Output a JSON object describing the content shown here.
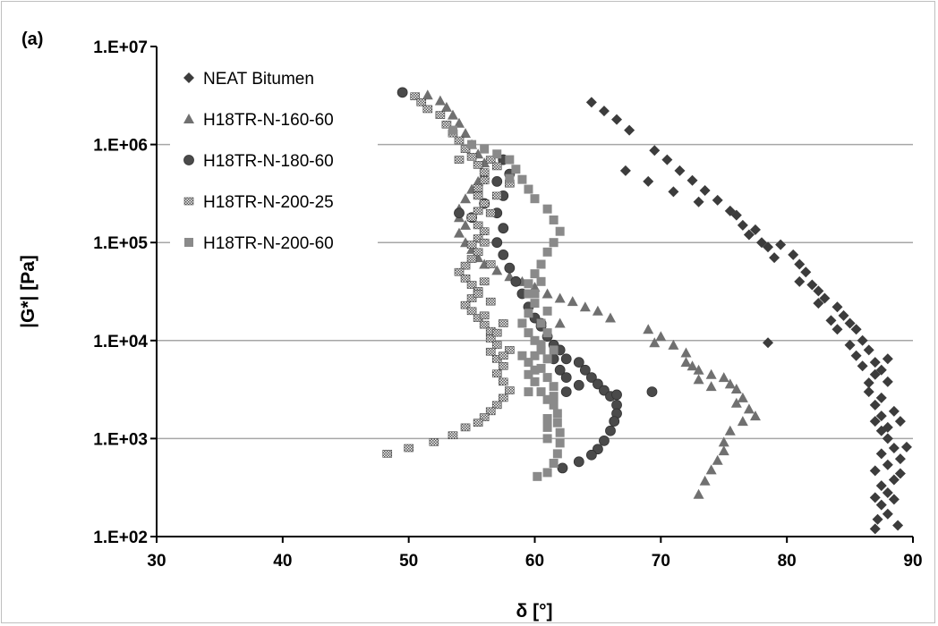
{
  "chart_data": {
    "type": "scatter",
    "panel_label": "(a)",
    "xlabel": "δ [°]",
    "ylabel": "|G*| [Pa]",
    "xlim": [
      30,
      90
    ],
    "ylim": [
      100,
      10000000
    ],
    "y_scale": "log",
    "x_ticks": [
      30,
      40,
      50,
      60,
      70,
      80,
      90
    ],
    "y_ticks": [
      100,
      1000,
      10000,
      100000,
      1000000,
      10000000
    ],
    "y_tick_labels": [
      "1.E+02",
      "1.E+03",
      "1.E+04",
      "1.E+05",
      "1.E+06",
      "1.E+07"
    ],
    "grid": "horizontal",
    "legend_position": "top-left",
    "series": [
      {
        "name": "NEAT Bitumen",
        "marker": "diamond",
        "color": "#3c3c3c",
        "points": [
          [
            64.5,
            2700000
          ],
          [
            65.5,
            2200000
          ],
          [
            66.5,
            1800000
          ],
          [
            67.5,
            1400000
          ],
          [
            67.2,
            540000
          ],
          [
            69.5,
            870000
          ],
          [
            69,
            420000
          ],
          [
            70.5,
            700000
          ],
          [
            71.5,
            540000
          ],
          [
            71,
            330000
          ],
          [
            72.5,
            430000
          ],
          [
            73.5,
            340000
          ],
          [
            73,
            260000
          ],
          [
            74.5,
            270000
          ],
          [
            75.5,
            210000
          ],
          [
            76,
            190000
          ],
          [
            76.5,
            150000
          ],
          [
            77.5,
            135000
          ],
          [
            77,
            120000
          ],
          [
            78,
            100000
          ],
          [
            78.5,
            90000
          ],
          [
            79.5,
            95000
          ],
          [
            79,
            70000
          ],
          [
            80.5,
            75000
          ],
          [
            81,
            60000
          ],
          [
            81.5,
            50000
          ],
          [
            81,
            40000
          ],
          [
            82,
            37000
          ],
          [
            82.5,
            32000
          ],
          [
            83,
            27000
          ],
          [
            82.5,
            24000
          ],
          [
            84,
            22000
          ],
          [
            84.5,
            18000
          ],
          [
            83.5,
            16000
          ],
          [
            85,
            15000
          ],
          [
            85.5,
            13000
          ],
          [
            84,
            13000
          ],
          [
            86,
            10000
          ],
          [
            85,
            9000
          ],
          [
            86.5,
            8000
          ],
          [
            85.5,
            7000
          ],
          [
            87,
            6000
          ],
          [
            86,
            5500
          ],
          [
            87,
            4500
          ],
          [
            86.5,
            3700
          ],
          [
            86.5,
            3000
          ],
          [
            88,
            6500
          ],
          [
            87.5,
            5000
          ],
          [
            88,
            3800
          ],
          [
            87.5,
            2600
          ],
          [
            87,
            2200
          ],
          [
            88.5,
            1900
          ],
          [
            87.5,
            1700
          ],
          [
            87,
            1500
          ],
          [
            89,
            1500
          ],
          [
            88,
            1300
          ],
          [
            87.5,
            1200
          ],
          [
            88,
            1000
          ],
          [
            89.5,
            820
          ],
          [
            88.5,
            800
          ],
          [
            87.5,
            700
          ],
          [
            89,
            620
          ],
          [
            88,
            540
          ],
          [
            87,
            470
          ],
          [
            89,
            440
          ],
          [
            88.5,
            380
          ],
          [
            87.5,
            330
          ],
          [
            88,
            280
          ],
          [
            87,
            250
          ],
          [
            88.5,
            240
          ],
          [
            87.5,
            210
          ],
          [
            88,
            170
          ],
          [
            87.2,
            150
          ],
          [
            87,
            120
          ],
          [
            88.8,
            130
          ],
          [
            78.5,
            9500
          ]
        ]
      },
      {
        "name": "H18TR-N-160-60",
        "marker": "triangle",
        "color": "#707070",
        "points": [
          [
            51.5,
            3200000
          ],
          [
            52.5,
            2800000
          ],
          [
            53,
            2400000
          ],
          [
            53.5,
            2000000
          ],
          [
            54,
            1650000
          ],
          [
            54.5,
            1300000
          ],
          [
            55,
            1000000
          ],
          [
            55.5,
            800000
          ],
          [
            56,
            650000
          ],
          [
            56,
            500000
          ],
          [
            55.5,
            420000
          ],
          [
            55,
            350000
          ],
          [
            54.5,
            280000
          ],
          [
            54,
            220000
          ],
          [
            54,
            180000
          ],
          [
            54.5,
            150000
          ],
          [
            54,
            125000
          ],
          [
            54.5,
            100000
          ],
          [
            55,
            85000
          ],
          [
            55.5,
            70000
          ],
          [
            56,
            60000
          ],
          [
            57,
            52000
          ],
          [
            58,
            45000
          ],
          [
            59,
            40000
          ],
          [
            60,
            35000
          ],
          [
            61,
            30000
          ],
          [
            62,
            27000
          ],
          [
            63,
            25000
          ],
          [
            64,
            22000
          ],
          [
            65,
            20000
          ],
          [
            66,
            17000
          ],
          [
            62,
            15000
          ],
          [
            69,
            13000
          ],
          [
            70,
            11000
          ],
          [
            69.5,
            9500
          ],
          [
            71,
            9000
          ],
          [
            72,
            7500
          ],
          [
            72.5,
            5500
          ],
          [
            73,
            5000
          ],
          [
            74,
            4500
          ],
          [
            75,
            4200
          ],
          [
            76,
            3200
          ],
          [
            76.5,
            2600
          ],
          [
            77,
            2000
          ],
          [
            77.5,
            1700
          ],
          [
            76.5,
            1500
          ],
          [
            75.5,
            1200
          ],
          [
            75,
            920
          ],
          [
            75,
            750
          ],
          [
            74.5,
            600
          ],
          [
            74,
            480
          ],
          [
            73.5,
            370
          ],
          [
            73,
            270
          ],
          [
            72,
            6000
          ],
          [
            73,
            4000
          ],
          [
            74,
            3400
          ],
          [
            75.5,
            3600
          ],
          [
            76,
            2300
          ]
        ]
      },
      {
        "name": "H18TR-N-180-60",
        "marker": "circle",
        "color": "#4a4a4a",
        "points": [
          [
            49.5,
            3400000
          ],
          [
            54,
            200000
          ],
          [
            55,
            180000
          ],
          [
            56,
            250000
          ],
          [
            57,
            420000
          ],
          [
            57.5,
            700000
          ],
          [
            58,
            500000
          ],
          [
            57.5,
            300000
          ],
          [
            57,
            200000
          ],
          [
            57.5,
            140000
          ],
          [
            57,
            100000
          ],
          [
            57.5,
            75000
          ],
          [
            58,
            55000
          ],
          [
            58.5,
            40000
          ],
          [
            59,
            30000
          ],
          [
            59.5,
            22000
          ],
          [
            60,
            17000
          ],
          [
            60.5,
            14000
          ],
          [
            61,
            11000
          ],
          [
            61.5,
            9000
          ],
          [
            62,
            8000
          ],
          [
            62.5,
            6500
          ],
          [
            62,
            5000
          ],
          [
            62.5,
            4200
          ],
          [
            63.5,
            6000
          ],
          [
            64,
            5000
          ],
          [
            64.5,
            4200
          ],
          [
            65,
            3600
          ],
          [
            65.5,
            3100
          ],
          [
            66,
            2700
          ],
          [
            66.5,
            2200
          ],
          [
            66.5,
            1800
          ],
          [
            66.3,
            1500
          ],
          [
            66,
            1200
          ],
          [
            65.5,
            950
          ],
          [
            65,
            780
          ],
          [
            64.5,
            680
          ],
          [
            63.5,
            580
          ],
          [
            62.2,
            500
          ],
          [
            69.3,
            3000
          ],
          [
            66.5,
            2800
          ],
          [
            62.5,
            3000
          ],
          [
            63.5,
            3500
          ],
          [
            60.5,
            15000
          ],
          [
            61.5,
            6500
          ]
        ]
      },
      {
        "name": "H18TR-N-200-25",
        "marker": "square-hatched",
        "color": "#5a5a5a",
        "points": [
          [
            50.5,
            3100000
          ],
          [
            51,
            2700000
          ],
          [
            51.5,
            2300000
          ],
          [
            52.5,
            2000000
          ],
          [
            53,
            1600000
          ],
          [
            53.5,
            1300000
          ],
          [
            54,
            1100000
          ],
          [
            54.5,
            900000
          ],
          [
            55,
            750000
          ],
          [
            55.5,
            620000
          ],
          [
            56,
            520000
          ],
          [
            56,
            430000
          ],
          [
            55.5,
            360000
          ],
          [
            55.5,
            300000
          ],
          [
            56,
            250000
          ],
          [
            55.5,
            210000
          ],
          [
            55,
            180000
          ],
          [
            55.5,
            150000
          ],
          [
            56,
            130000
          ],
          [
            55.5,
            110000
          ],
          [
            55,
            95000
          ],
          [
            55.5,
            80000
          ],
          [
            55,
            68000
          ],
          [
            54.5,
            58000
          ],
          [
            54,
            50000
          ],
          [
            54.5,
            43000
          ],
          [
            55,
            37000
          ],
          [
            55.5,
            32000
          ],
          [
            55,
            27000
          ],
          [
            54.5,
            23000
          ],
          [
            55,
            20000
          ],
          [
            55.5,
            17000
          ],
          [
            56,
            14500
          ],
          [
            56.5,
            12500
          ],
          [
            56.5,
            10500
          ],
          [
            57,
            9000
          ],
          [
            56.5,
            7700
          ],
          [
            57,
            6500
          ],
          [
            57.5,
            5500
          ],
          [
            57,
            4600
          ],
          [
            57.5,
            3800
          ],
          [
            58,
            3100
          ],
          [
            57.5,
            2600
          ],
          [
            57,
            2200
          ],
          [
            56.5,
            1900
          ],
          [
            56,
            1650
          ],
          [
            55.5,
            1450
          ],
          [
            54.5,
            1300
          ],
          [
            53.5,
            1080
          ],
          [
            52,
            920
          ],
          [
            50,
            800
          ],
          [
            48.3,
            700
          ],
          [
            54,
            700000
          ],
          [
            56.5,
            700000
          ],
          [
            57,
            600000
          ],
          [
            58,
            400000
          ],
          [
            57,
            300000
          ],
          [
            56.5,
            200000
          ],
          [
            56,
            100000
          ],
          [
            56.5,
            60000
          ],
          [
            56,
            40000
          ],
          [
            55.5,
            30000
          ],
          [
            56.5,
            25000
          ],
          [
            56,
            18000
          ],
          [
            57.5,
            15000
          ],
          [
            57,
            12000
          ],
          [
            58,
            8000
          ],
          [
            57.5,
            7000
          ]
        ]
      },
      {
        "name": "H18TR-N-200-60",
        "marker": "square",
        "color": "#8a8a8a",
        "points": [
          [
            53.5,
            1400000
          ],
          [
            55,
            1000000
          ],
          [
            56,
            900000
          ],
          [
            57,
            800000
          ],
          [
            58,
            700000
          ],
          [
            58.5,
            560000
          ],
          [
            58,
            450000
          ],
          [
            59,
            440000
          ],
          [
            59.5,
            350000
          ],
          [
            60,
            280000
          ],
          [
            61,
            220000
          ],
          [
            61.5,
            170000
          ],
          [
            62,
            130000
          ],
          [
            61.5,
            100000
          ],
          [
            61,
            80000
          ],
          [
            60.5,
            60000
          ],
          [
            60,
            48000
          ],
          [
            59.5,
            38000
          ],
          [
            59.5,
            30000
          ],
          [
            60,
            24000
          ],
          [
            59.5,
            19000
          ],
          [
            59,
            15000
          ],
          [
            59.5,
            12000
          ],
          [
            60,
            10000
          ],
          [
            60.5,
            8000
          ],
          [
            61,
            6500
          ],
          [
            60.5,
            5200
          ],
          [
            61,
            4200
          ],
          [
            61.5,
            3400
          ],
          [
            61.5,
            2700
          ],
          [
            61.5,
            2200
          ],
          [
            61.8,
            1800
          ],
          [
            61.8,
            1450
          ],
          [
            62,
            1150
          ],
          [
            62,
            900
          ],
          [
            61.8,
            700
          ],
          [
            61.5,
            560
          ],
          [
            61,
            450
          ],
          [
            60.2,
            410
          ],
          [
            60.5,
            40000
          ],
          [
            60,
            30000
          ],
          [
            61,
            20000
          ],
          [
            60.5,
            15000
          ],
          [
            61,
            12000
          ],
          [
            60,
            7000
          ],
          [
            59.5,
            6000
          ],
          [
            60,
            5000
          ],
          [
            59.5,
            4500
          ],
          [
            60,
            3800
          ],
          [
            60.5,
            3000
          ],
          [
            61,
            2500
          ],
          [
            61,
            1600
          ],
          [
            61,
            1300
          ],
          [
            61,
            1000
          ],
          [
            60.5,
            9000
          ],
          [
            61.5,
            8000
          ],
          [
            59,
            7000
          ],
          [
            59.5,
            3000
          ]
        ]
      }
    ]
  }
}
